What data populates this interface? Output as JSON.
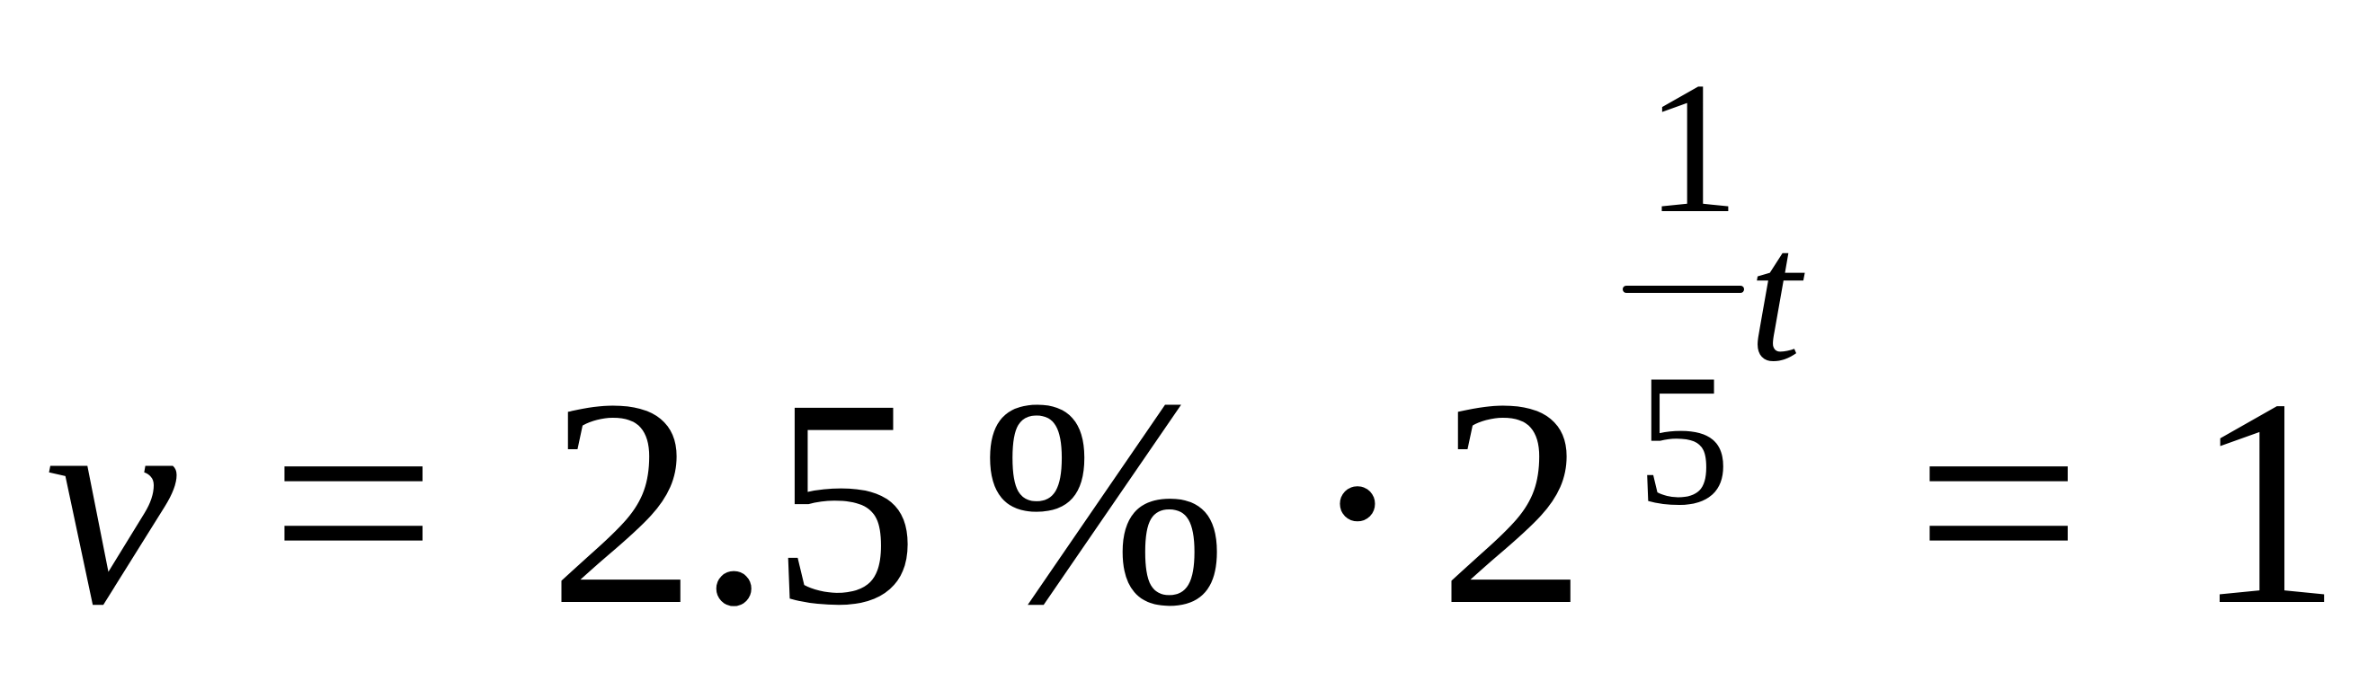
{
  "equation": {
    "variable": "v",
    "equals": "=",
    "coefficient": "2.5",
    "percent": "%",
    "operator": "·",
    "base": "2",
    "exponent": {
      "numerator": "1",
      "denominator": "5",
      "variable": "t"
    },
    "rhs": "1"
  }
}
